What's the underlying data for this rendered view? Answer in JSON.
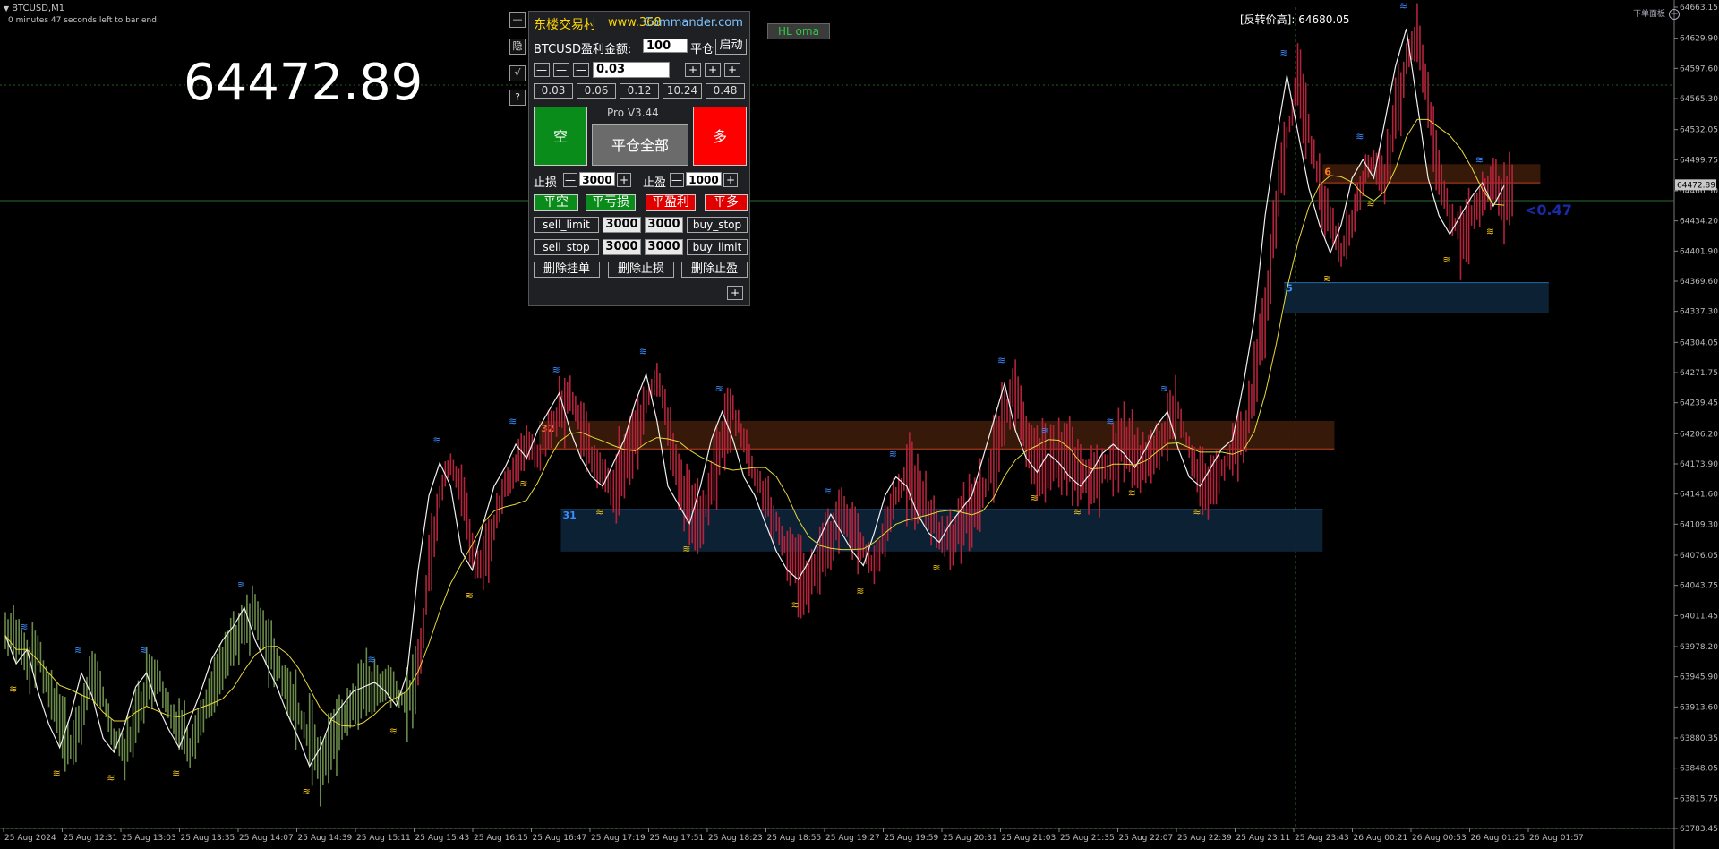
{
  "header": {
    "symbol": "BTCUSD,M1",
    "bar_timer": "0 minutes 47 seconds left to bar end",
    "big_price": "64472.89",
    "reverse_price": "[反转价高]: 64680.05",
    "top_right_label": "下单面板",
    "hl_oma_label": "HL oma"
  },
  "side_buttons": [
    "—",
    "隐",
    "√",
    "?"
  ],
  "panel": {
    "title": "东楼交易村",
    "url_a": "www.368",
    "url_b": "Commander.com",
    "profit_label": "BTCUSD盈利金额:",
    "profit_value": "100",
    "close_label": "平仓",
    "start_button": "启动",
    "lot_value": "0.03",
    "lot_presets": [
      "0.03",
      "0.06",
      "0.12",
      "10.24",
      "0.48"
    ],
    "sell_button": "空",
    "version": "Pro V3.44",
    "close_all_button": "平仓全部",
    "buy_button": "多",
    "stoploss_label": "止损",
    "stoploss_value": "3000",
    "takeprofit_label": "止盈",
    "takeprofit_value": "1000",
    "close_short": "平空",
    "close_loss": "平亏损",
    "close_profit": "平盈利",
    "close_long": "平多",
    "sell_limit": "sell_limit",
    "sell_limit_value": "3000",
    "buy_stop_value": "3000",
    "buy_stop": "buy_stop",
    "sell_stop": "sell_stop",
    "sell_stop_value": "3000",
    "buy_limit_value": "3000",
    "buy_limit": "buy_limit",
    "delete_pending": "删除挂单",
    "delete_sl": "删除止损",
    "delete_tp": "删除止盈",
    "minus": "—",
    "plus": "+"
  },
  "chart_data": {
    "type": "line",
    "title": "",
    "current_price": "64472.89",
    "current_price_label": "64472.89",
    "y_ticks": [
      "64663.15",
      "64629.90",
      "64597.60",
      "64565.30",
      "64532.05",
      "64499.75",
      "64466.50",
      "64434.20",
      "64401.90",
      "64369.60",
      "64337.30",
      "64304.05",
      "64271.75",
      "64239.45",
      "64206.20",
      "64173.90",
      "64141.60",
      "64109.30",
      "64076.05",
      "64043.75",
      "64011.45",
      "63978.20",
      "63945.90",
      "63913.60",
      "63880.35",
      "63848.05",
      "63815.75",
      "63783.45"
    ],
    "y_range": [
      63783.45,
      64663.15
    ],
    "x_ticks": [
      "25 Aug 2024",
      "25 Aug 12:31",
      "25 Aug 13:03",
      "25 Aug 13:35",
      "25 Aug 14:07",
      "25 Aug 14:39",
      "25 Aug 15:11",
      "25 Aug 15:43",
      "25 Aug 16:15",
      "25 Aug 16:47",
      "25 Aug 17:19",
      "25 Aug 17:51",
      "25 Aug 18:23",
      "25 Aug 18:55",
      "25 Aug 19:27",
      "25 Aug 19:59",
      "25 Aug 20:31",
      "25 Aug 21:03",
      "25 Aug 21:35",
      "25 Aug 22:07",
      "25 Aug 22:39",
      "25 Aug 23:11",
      "25 Aug 23:43",
      "26 Aug 00:21",
      "26 Aug 00:53",
      "26 Aug 01:25",
      "26 Aug 01:57"
    ],
    "zones": [
      {
        "label": "32",
        "type": "resistance",
        "from": 64190,
        "to": 64220,
        "x_start": 0.322,
        "x_end": 0.797
      },
      {
        "label": "31",
        "type": "support",
        "from": 64080,
        "to": 64125,
        "x_start": 0.335,
        "x_end": 0.79
      },
      {
        "label": "6",
        "type": "resistance",
        "from": 64475,
        "to": 64495,
        "x_start": 0.79,
        "x_end": 0.92
      },
      {
        "label": "5",
        "type": "support",
        "from": 64335,
        "to": 64368,
        "x_start": 0.767,
        "x_end": 0.925
      }
    ],
    "annotation": "<0.47",
    "series_close": [
      63990,
      63960,
      63975,
      63930,
      63895,
      63870,
      63905,
      63950,
      63925,
      63880,
      63865,
      63895,
      63935,
      63950,
      63915,
      63890,
      63870,
      63900,
      63930,
      63965,
      63985,
      64000,
      64020,
      63985,
      63960,
      63935,
      63905,
      63880,
      63850,
      63870,
      63900,
      63915,
      63930,
      63935,
      63940,
      63930,
      63915,
      63950,
      64060,
      64140,
      64175,
      64150,
      64080,
      64060,
      64110,
      64150,
      64170,
      64195,
      64180,
      64210,
      64230,
      64250,
      64210,
      64180,
      64160,
      64150,
      64175,
      64200,
      64240,
      64270,
      64220,
      64150,
      64130,
      64110,
      64150,
      64200,
      64230,
      64200,
      64160,
      64140,
      64110,
      64080,
      64060,
      64050,
      64070,
      64095,
      64120,
      64100,
      64080,
      64065,
      64100,
      64140,
      64160,
      64150,
      64120,
      64100,
      64090,
      64110,
      64125,
      64140,
      64180,
      64220,
      64260,
      64210,
      64180,
      64165,
      64185,
      64175,
      64160,
      64150,
      64165,
      64185,
      64195,
      64185,
      64170,
      64190,
      64215,
      64230,
      64190,
      64160,
      64150,
      64170,
      64190,
      64200,
      64260,
      64330,
      64440,
      64520,
      64590,
      64530,
      64470,
      64430,
      64400,
      64430,
      64480,
      64500,
      64480,
      64540,
      64600,
      64640,
      64560,
      64480,
      64440,
      64420,
      64440,
      64460,
      64475,
      64450,
      64472
    ]
  }
}
